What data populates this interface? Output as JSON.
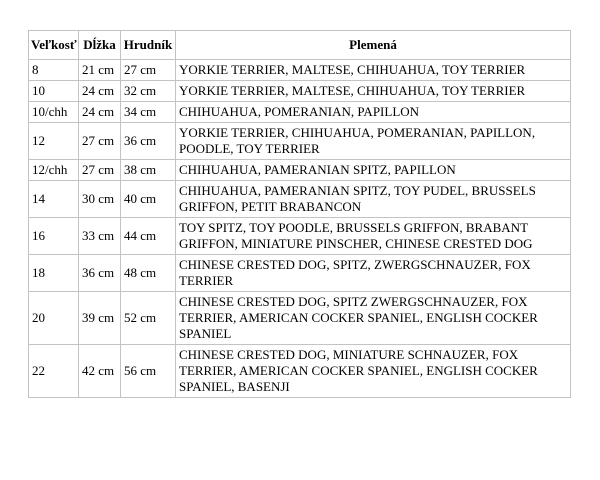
{
  "colors": {
    "background": "#ffffff",
    "text": "#000000",
    "cell_border": "#c3c3c3",
    "outer_border": "#a6a6a6"
  },
  "table": {
    "headers": {
      "size": "Veľkosť",
      "length": "Dĺžka",
      "chest": "Hrudník",
      "breeds": "Plemená"
    },
    "rows": [
      {
        "size": "8",
        "length": "21 cm",
        "chest": "27 cm",
        "breeds": "YORKIE TERRIER, MALTESE, CHIHUAHUA, TOY TERRIER"
      },
      {
        "size": "10",
        "length": "24 cm",
        "chest": "32 cm",
        "breeds": "YORKIE TERRIER, MALTESE, CHIHUAHUA, TOY TERRIER"
      },
      {
        "size": "10/chh",
        "length": "24 cm",
        "chest": "34 cm",
        "breeds": "CHIHUAHUA, POMERANIAN, PAPILLON"
      },
      {
        "size": "12",
        "length": "27 cm",
        "chest": "36 cm",
        "breeds": "YORKIE TERRIER, CHIHUAHUA, POMERANIAN, PAPILLON, POODLE, TOY TERRIER"
      },
      {
        "size": "12/chh",
        "length": "27 cm",
        "chest": "38 cm",
        "breeds": "CHIHUAHUA, PAMERANIAN SPITZ, PAPILLON"
      },
      {
        "size": "14",
        "length": "30 cm",
        "chest": "40 cm",
        "breeds": "CHIHUAHUA, PAMERANIAN SPITZ, TOY PUDEL, BRUSSELS GRIFFON, PETIT BRABANCON"
      },
      {
        "size": "16",
        "length": "33 cm",
        "chest": "44 cm",
        "breeds": "TOY SPITZ, TOY POODLE, BRUSSELS GRIFFON, BRABANT GRIFFON, MINIATURE PINSCHER, CHINESE CRESTED DOG"
      },
      {
        "size": "18",
        "length": "36 cm",
        "chest": "48 cm",
        "breeds": "CHINESE CRESTED DOG, SPITZ, ZWERGSCHNAUZER, FOX TERRIER"
      },
      {
        "size": "20",
        "length": "39 cm",
        "chest": "52 cm",
        "breeds": "CHINESE CRESTED DOG, SPITZ ZWERGSCHNAUZER, FOX TERRIER, AMERICAN COCKER SPANIEL, ENGLISH COCKER SPANIEL"
      },
      {
        "size": "22",
        "length": "42 cm",
        "chest": "56 cm",
        "breeds": "CHINESE CRESTED DOG, MINIATURE SCHNAUZER, FOX TERRIER, AMERICAN COCKER SPANIEL, ENGLISH COCKER SPANIEL, BASENJI"
      }
    ]
  }
}
